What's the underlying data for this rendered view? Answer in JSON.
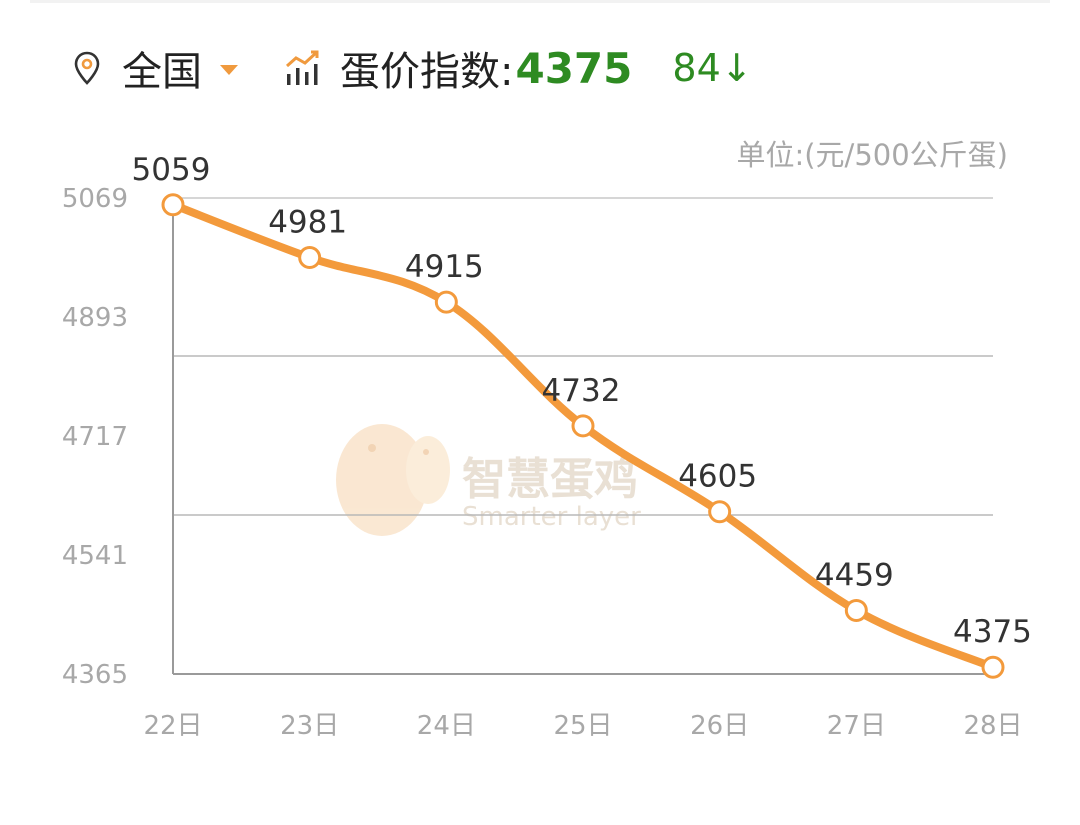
{
  "header": {
    "region": "全国",
    "index_label": "蛋价指数:",
    "index_value": "4375",
    "index_change": "84↓",
    "unit": "单位:(元/500公斤蛋)"
  },
  "icons": {
    "location": "location-pin-icon",
    "dropdown": "caret-down-icon",
    "trend": "trend-chart-icon"
  },
  "colors": {
    "line": "#f39a3c",
    "down": "#2e8b22",
    "axis_text": "#a8a8a8"
  },
  "watermark": {
    "title": "智慧蛋鸡",
    "subtitle": "Smarter layer"
  },
  "chart_data": {
    "type": "line",
    "categories": [
      "22日",
      "23日",
      "24日",
      "25日",
      "26日",
      "27日",
      "28日"
    ],
    "values": [
      5059,
      4981,
      4915,
      4732,
      4605,
      4459,
      4375
    ],
    "yticks": [
      5069,
      4893,
      4717,
      4541,
      4365
    ],
    "ylim": [
      4365,
      5069
    ],
    "unit": "单位:(元/500公斤蛋)",
    "grid": true
  }
}
